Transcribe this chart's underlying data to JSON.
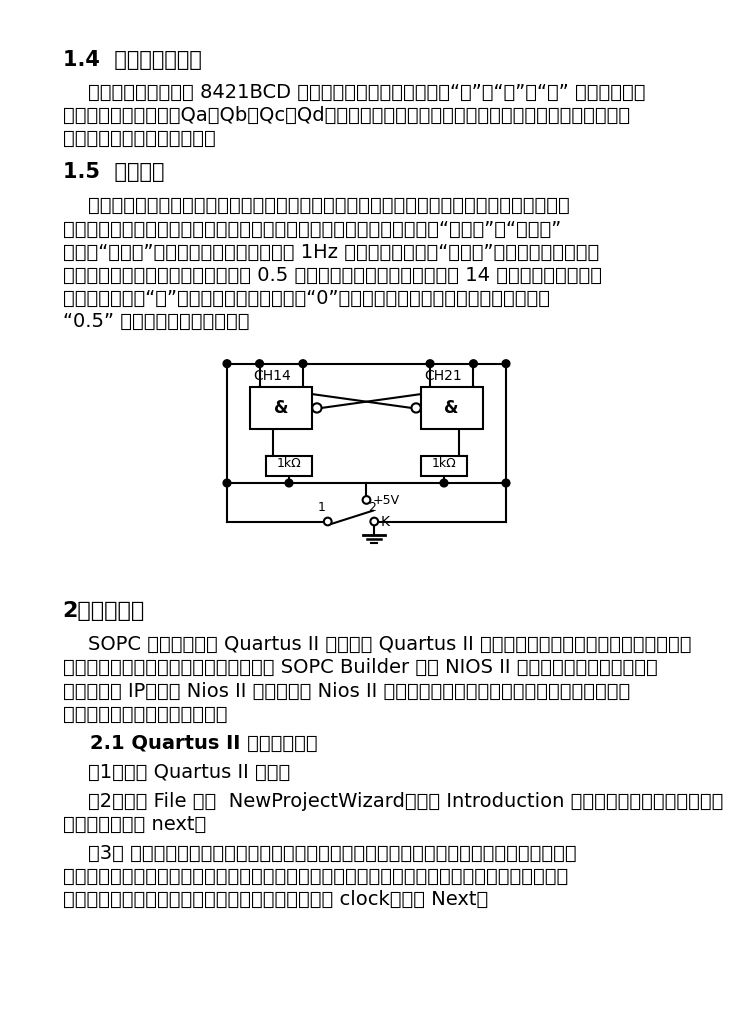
{
  "bg_color": "#ffffff",
  "text_color": "#000000",
  "heading1": "1.4  译码器及显示器",
  "heading2": "1.5  校时电路",
  "heading3": "2、设计过程",
  "heading4": "    2.1 Quartus II 工程的建立：",
  "p1_l1": "    因为计数器全部采用 8421BCD 码十进制计数集成芯片，所以“秒”、“分”、“时” 的个位和十位",
  "p1_l2": "都有四个状态输出端（Qa、Qb、Qc、Qd）。将这些输出端接至专门设计制造的译码电路，就可产生",
  "p1_l3": "驱动七段数码显示器的信号。",
  "p2_l1": "    当数字钟接通电源或者计时出现误差时需要校正时间，校时电路的要求是：在小时校正时不影",
  "p2_l2": "响分和秒的正常计数；在分校时时不影响时和秒的正常计数；校时方式有“快校时”和“慢校时”",
  "p2_l3": "两种，“快校时”是通过开关控制使计数器对 1Hz 的校时脉冲计数，“慢校时”是通过手动产生单脉",
  "p2_l4": "冲作校时脉冲，校时的基本原理是将 0.5 秒的脉冲信号（可由分频器的第 14 级分频输出端直接获",
  "p2_l5": "得），直接引进“时”计数器，同时将计数器置“0”，在时的指示调到需要的数字后，再切断",
  "p2_l6": "“0.5” 信号让计数器正常工作。",
  "p3_l1": "    SOPC 设计首先使用 Quartus II 建立一个 Quartus II 的工程，创建完成工程之后，需要创建顶",
  "p3_l2": "层实体。创建完顶层设计文件之后，使用 SOPC Builder 创建 NIOS II 嵌入式处理器，添加、配置",
  "p3_l3": "系统的外设 IP，组成 Nios II 系统模块。 Nios II 系统模块设计完成之后要加入到该顶层实体中，",
  "p3_l4": "然后进行其他片上逻辑的开发。",
  "p4_l1": "    （1）启动 Quartus II 软件；",
  "p4_l2": "    （2）选择 File 菜单  NewProjectWizard，出现 Introduction 页面，该页面介绍所要完成的",
  "p4_l3": "具体任务，点击 next。",
  "p4_l4": "    （3） 进行项目名称的设定、工作目录的选择。指定工程存放的目录，工程名和顶层实体名，",
  "p4_l5": "工程名和顶层实体名要求相同，工程目录可以随意设置，但必须是英文的目录，工程名和顶层实体",
  "p4_l6": "名也要求是英文名字，我们的工程名和顶层实体名为 clock，选择 Next。"
}
